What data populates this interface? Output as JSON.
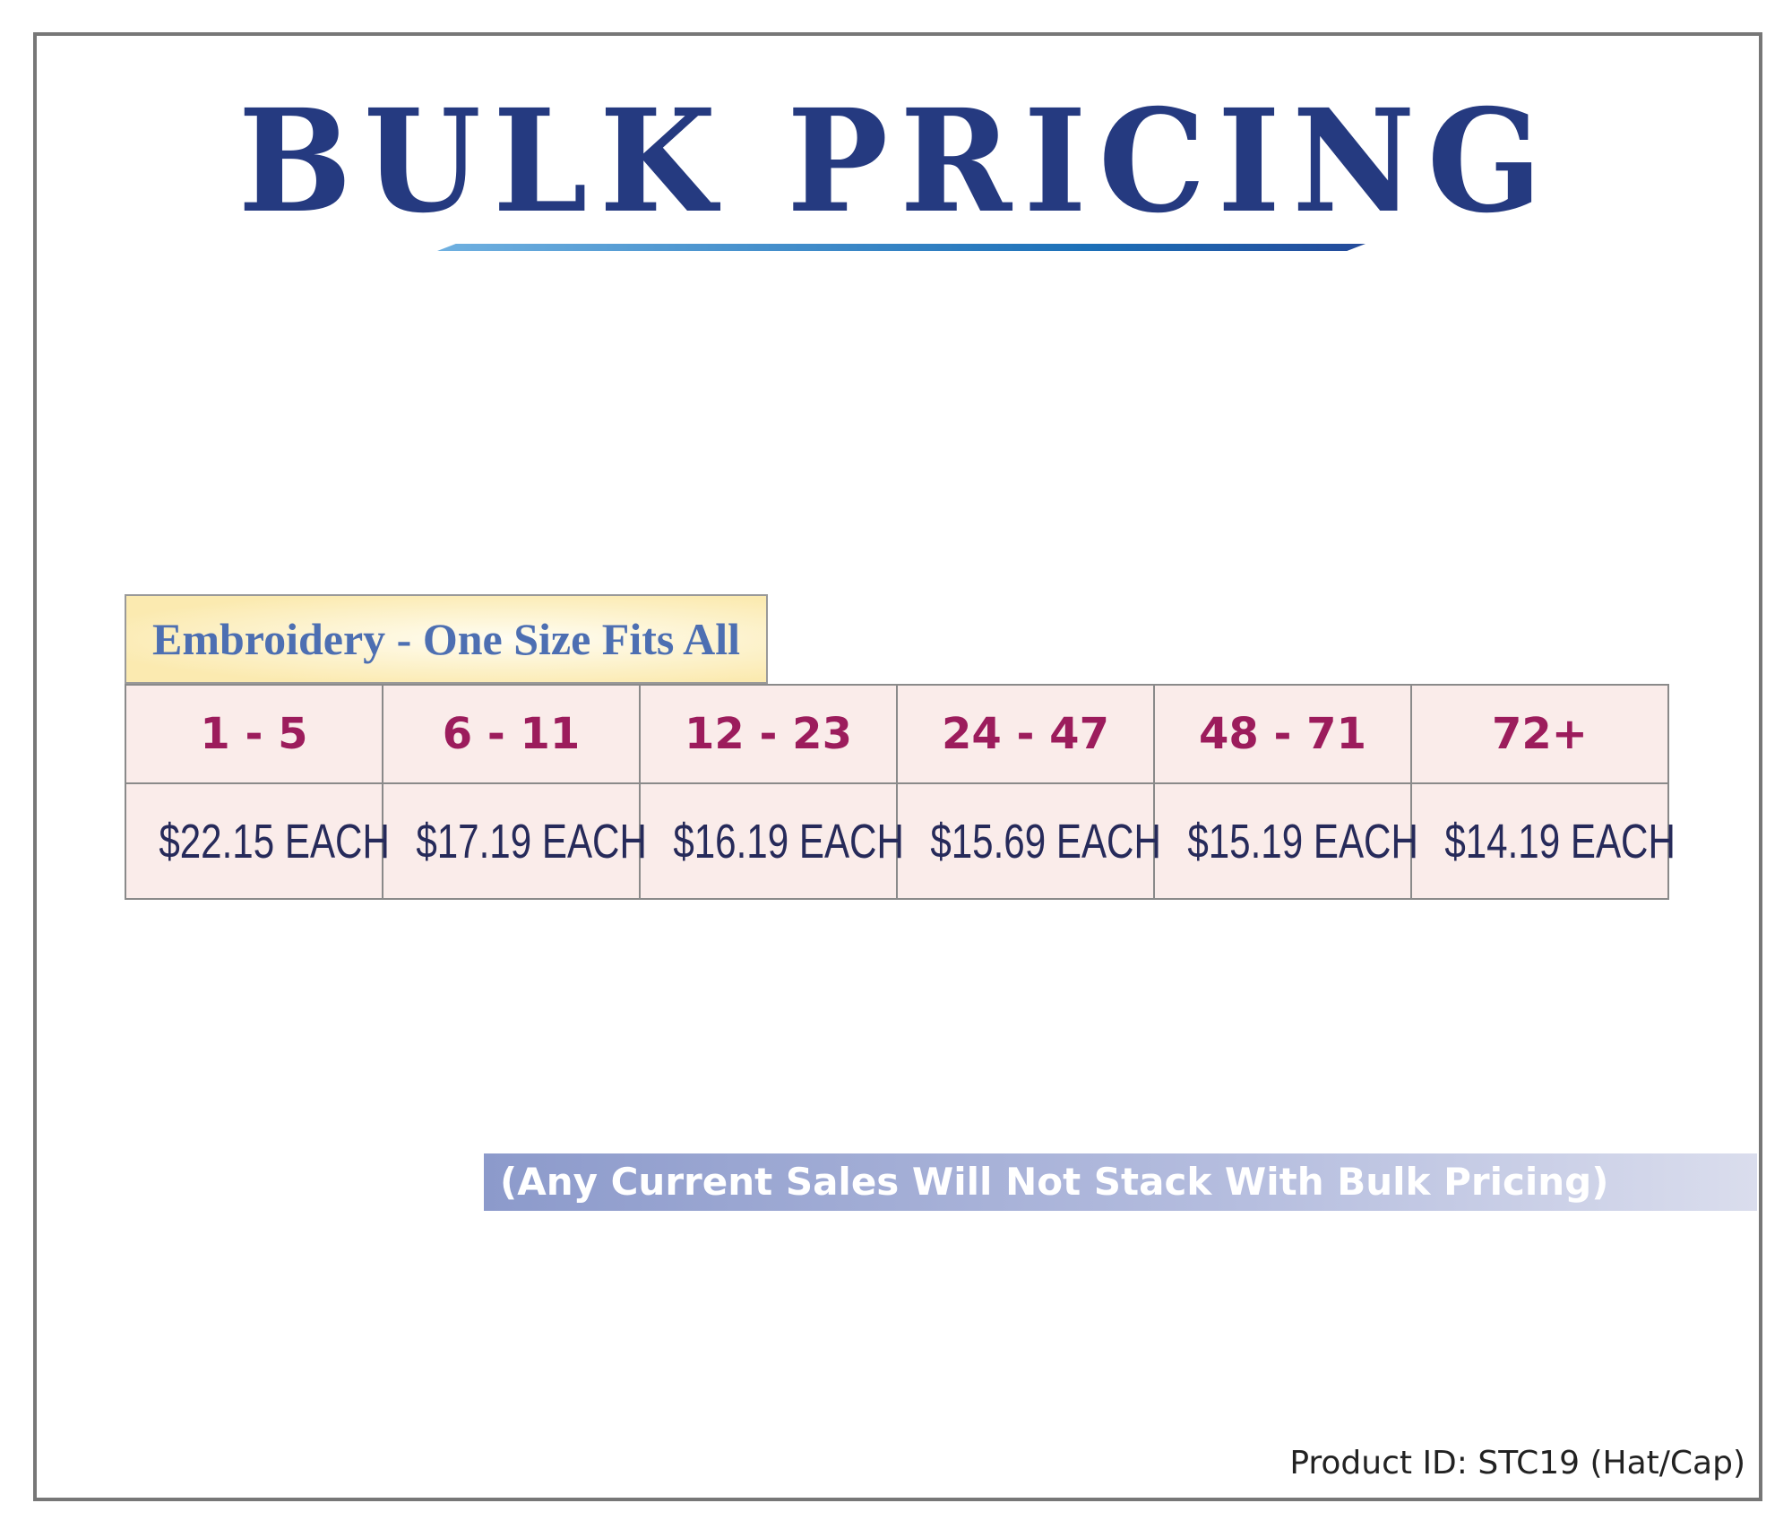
{
  "header": {
    "title": "BULK PRICING"
  },
  "table": {
    "caption": "Embroidery - One Size Fits All",
    "quantities": [
      "1 - 5",
      "6 - 11",
      "12 - 23",
      "24 - 47",
      "48 - 71",
      "72+"
    ],
    "prices": [
      "$22.15 EACH",
      "$17.19 EACH",
      "$16.19 EACH",
      "$15.69 EACH",
      "$15.19 EACH",
      "$14.19 EACH"
    ]
  },
  "note": "(Any Current Sales Will Not Stack With Bulk Pricing)",
  "footer": {
    "product_id": "Product ID: STC19 (Hat/Cap)"
  }
}
